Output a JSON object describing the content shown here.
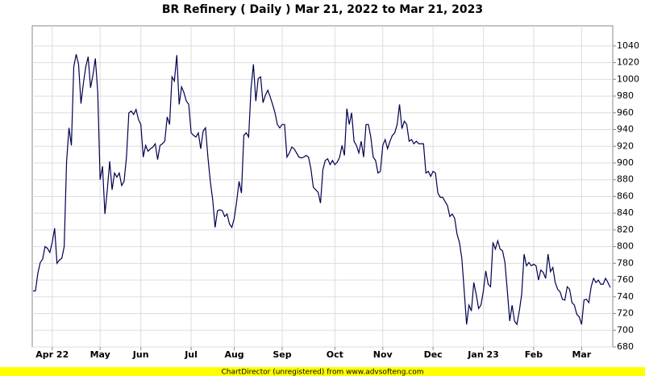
{
  "chart_data": {
    "type": "line",
    "title": "BR Refinery ( Daily ) Mar 21, 2022 to Mar 21, 2023",
    "footer": "ChartDirector (unregistered) from www.advsofteng.com",
    "color": "#000050",
    "grid": true,
    "ylim": [
      680,
      1064
    ],
    "yticks": [
      680,
      700,
      720,
      740,
      760,
      780,
      800,
      820,
      840,
      860,
      880,
      900,
      920,
      940,
      960,
      980,
      1000,
      1020,
      1040
    ],
    "categories": [
      null,
      null,
      null,
      null,
      null,
      null,
      null,
      null,
      "Apr 22",
      null,
      null,
      null,
      null,
      null,
      null,
      null,
      null,
      null,
      null,
      null,
      null,
      null,
      null,
      null,
      null,
      null,
      null,
      null,
      "May",
      null,
      null,
      null,
      null,
      null,
      null,
      null,
      null,
      null,
      null,
      null,
      null,
      null,
      null,
      null,
      null,
      "Jun",
      null,
      null,
      null,
      null,
      null,
      null,
      null,
      null,
      null,
      null,
      null,
      null,
      null,
      null,
      null,
      null,
      null,
      null,
      null,
      null,
      "Jul",
      null,
      null,
      null,
      null,
      null,
      null,
      null,
      null,
      null,
      null,
      null,
      null,
      null,
      null,
      null,
      null,
      null,
      "Aug",
      null,
      null,
      null,
      null,
      null,
      null,
      null,
      null,
      null,
      null,
      null,
      null,
      null,
      null,
      null,
      null,
      null,
      null,
      null,
      "Sep",
      null,
      null,
      null,
      null,
      null,
      null,
      null,
      null,
      null,
      null,
      null,
      null,
      null,
      null,
      null,
      null,
      null,
      null,
      null,
      null,
      null,
      "Oct",
      null,
      null,
      null,
      null,
      null,
      null,
      null,
      null,
      null,
      null,
      null,
      null,
      null,
      null,
      null,
      null,
      null,
      null,
      null,
      "Nov",
      null,
      null,
      null,
      null,
      null,
      null,
      null,
      null,
      null,
      null,
      null,
      null,
      null,
      null,
      null,
      null,
      null,
      null,
      null,
      null,
      "Dec",
      null,
      null,
      null,
      null,
      null,
      null,
      null,
      null,
      null,
      null,
      null,
      null,
      null,
      null,
      null,
      null,
      null,
      null,
      null,
      null,
      "Jan 23",
      null,
      null,
      null,
      null,
      null,
      null,
      null,
      null,
      null,
      null,
      null,
      null,
      null,
      null,
      null,
      null,
      null,
      null,
      null,
      null,
      "Feb",
      null,
      null,
      null,
      null,
      null,
      null,
      null,
      null,
      null,
      null,
      null,
      null,
      null,
      null,
      null,
      null,
      null,
      null,
      null,
      "Mar",
      null,
      null,
      null,
      null,
      null,
      null,
      null,
      null,
      null,
      null,
      null,
      null
    ],
    "values": [
      747,
      747,
      768,
      781,
      785,
      800,
      798,
      793,
      805,
      822,
      780,
      784,
      786,
      800,
      902,
      942,
      921,
      1015,
      1030,
      1018,
      971,
      995,
      1015,
      1027,
      990,
      1005,
      1025,
      985,
      880,
      896,
      839,
      868,
      902,
      868,
      888,
      883,
      888,
      873,
      878,
      907,
      960,
      962,
      958,
      964,
      952,
      946,
      907,
      921,
      914,
      917,
      919,
      923,
      904,
      921,
      923,
      926,
      955,
      946,
      1003,
      998,
      1029,
      970,
      991,
      984,
      974,
      970,
      936,
      933,
      931,
      936,
      917,
      938,
      942,
      907,
      878,
      856,
      823,
      843,
      844,
      843,
      836,
      839,
      827,
      823,
      834,
      854,
      878,
      864,
      933,
      936,
      931,
      989,
      1018,
      974,
      1001,
      1003,
      972,
      981,
      987,
      979,
      970,
      960,
      946,
      942,
      946,
      946,
      907,
      912,
      919,
      917,
      912,
      907,
      906,
      907,
      909,
      907,
      893,
      871,
      868,
      865,
      852,
      892,
      903,
      905,
      898,
      903,
      898,
      901,
      907,
      921,
      909,
      965,
      946,
      960,
      926,
      921,
      912,
      926,
      907,
      946,
      946,
      931,
      907,
      903,
      888,
      890,
      921,
      928,
      917,
      926,
      933,
      936,
      946,
      970,
      941,
      950,
      946,
      926,
      928,
      923,
      926,
      923,
      923,
      923,
      888,
      890,
      884,
      890,
      888,
      864,
      859,
      859,
      854,
      849,
      836,
      839,
      834,
      815,
      805,
      786,
      747,
      707,
      730,
      723,
      757,
      743,
      726,
      730,
      747,
      771,
      755,
      752,
      805,
      797,
      807,
      797,
      795,
      781,
      747,
      711,
      730,
      711,
      707,
      723,
      743,
      791,
      777,
      781,
      777,
      779,
      777,
      760,
      772,
      769,
      762,
      791,
      770,
      775,
      757,
      749,
      746,
      737,
      736,
      752,
      749,
      733,
      730,
      719,
      716,
      707,
      736,
      737,
      733,
      752,
      762,
      757,
      760,
      755,
      755,
      762,
      757,
      751
    ]
  }
}
